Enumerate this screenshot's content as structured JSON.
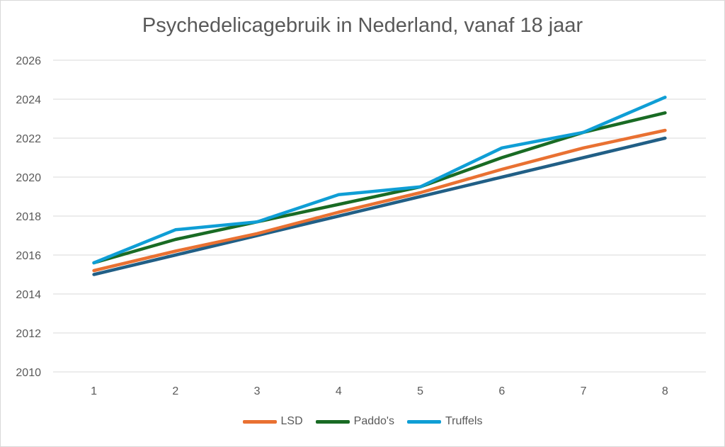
{
  "chart_data": {
    "type": "line",
    "title": "Psychedelicagebruik in Nederland, vanaf 18 jaar",
    "xlabel": "",
    "ylabel": "",
    "categories": [
      "1",
      "2",
      "3",
      "4",
      "5",
      "6",
      "7",
      "8"
    ],
    "ylim": [
      2010,
      2026
    ],
    "yticks": [
      "2010",
      "2012",
      "2014",
      "2016",
      "2018",
      "2020",
      "2022",
      "2024",
      "2026"
    ],
    "grid": true,
    "legend_position": "bottom",
    "series": [
      {
        "name": "",
        "color": "#215f86",
        "values": [
          2015,
          2016,
          2017,
          2018,
          2019,
          2020,
          2021,
          2022
        ],
        "in_legend": false
      },
      {
        "name": "LSD",
        "color": "#e97132",
        "values": [
          2015.2,
          2016.2,
          2017.1,
          2018.2,
          2019.2,
          2020.4,
          2021.5,
          2022.4
        ]
      },
      {
        "name": "Paddo's",
        "color": "#196b24",
        "values": [
          2015.6,
          2016.8,
          2017.7,
          2018.6,
          2019.5,
          2021.0,
          2022.3,
          2023.3
        ]
      },
      {
        "name": "Truffels",
        "color": "#0f9ed5",
        "values": [
          2015.6,
          2017.3,
          2017.7,
          2019.1,
          2019.5,
          2021.5,
          2022.3,
          2024.1
        ]
      }
    ]
  }
}
